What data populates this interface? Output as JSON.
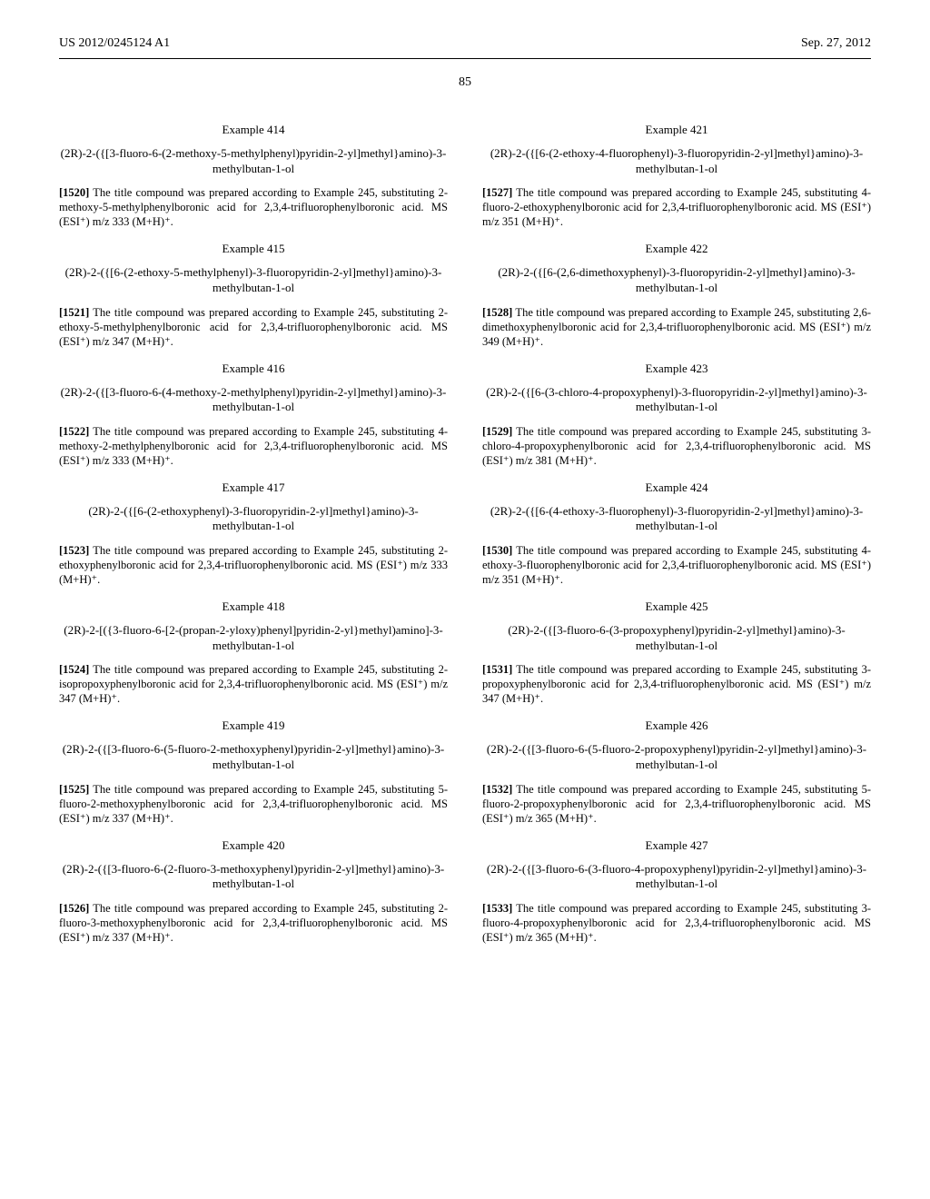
{
  "header": {
    "left": "US 2012/0245124 A1",
    "right": "Sep. 27, 2012"
  },
  "page_number": "85",
  "left_col": [
    {
      "example": "Example 414",
      "title": "(2R)-2-({[3-fluoro-6-(2-methoxy-5-methylphenyl)pyridin-2-yl]methyl}amino)-3-methylbutan-1-ol",
      "pn": "[1520]",
      "body": "   The title compound was prepared according to Example 245, substituting 2-methoxy-5-methylphenylboronic acid for 2,3,4-trifluorophenylboronic acid. MS (ESI⁺) m/z 333 (M+H)⁺."
    },
    {
      "example": "Example 415",
      "title": "(2R)-2-({[6-(2-ethoxy-5-methylphenyl)-3-fluoropyridin-2-yl]methyl}amino)-3-methylbutan-1-ol",
      "pn": "[1521]",
      "body": "   The title compound was prepared according to Example 245, substituting 2-ethoxy-5-methylphenylboronic acid for 2,3,4-trifluorophenylboronic acid. MS (ESI⁺) m/z 347 (M+H)⁺."
    },
    {
      "example": "Example 416",
      "title": "(2R)-2-({[3-fluoro-6-(4-methoxy-2-methylphenyl)pyridin-2-yl]methyl}amino)-3-methylbutan-1-ol",
      "pn": "[1522]",
      "body": "   The title compound was prepared according to Example 245, substituting 4-methoxy-2-methylphenylboronic acid for 2,3,4-trifluorophenylboronic acid. MS (ESI⁺) m/z 333 (M+H)⁺."
    },
    {
      "example": "Example 417",
      "title": "(2R)-2-({[6-(2-ethoxyphenyl)-3-fluoropyridin-2-yl]methyl}amino)-3-methylbutan-1-ol",
      "pn": "[1523]",
      "body": "   The title compound was prepared according to Example 245, substituting 2-ethoxyphenylboronic acid for 2,3,4-trifluorophenylboronic acid. MS (ESI⁺) m/z 333 (M+H)⁺."
    },
    {
      "example": "Example 418",
      "title": "(2R)-2-[({3-fluoro-6-[2-(propan-2-yloxy)phenyl]pyridin-2-yl}methyl)amino]-3-methylbutan-1-ol",
      "pn": "[1524]",
      "body": "   The title compound was prepared according to Example 245, substituting 2-isopropoxyphenylboronic acid for 2,3,4-trifluorophenylboronic acid. MS (ESI⁺) m/z 347 (M+H)⁺."
    },
    {
      "example": "Example 419",
      "title": "(2R)-2-({[3-fluoro-6-(5-fluoro-2-methoxyphenyl)pyridin-2-yl]methyl}amino)-3-methylbutan-1-ol",
      "pn": "[1525]",
      "body": "   The title compound was prepared according to Example 245, substituting 5-fluoro-2-methoxyphenylboronic acid for 2,3,4-trifluorophenylboronic acid. MS (ESI⁺) m/z 337 (M+H)⁺."
    },
    {
      "example": "Example 420",
      "title": "(2R)-2-({[3-fluoro-6-(2-fluoro-3-methoxyphenyl)pyridin-2-yl]methyl}amino)-3-methylbutan-1-ol",
      "pn": "[1526]",
      "body": "   The title compound was prepared according to Example 245, substituting 2-fluoro-3-methoxyphenylboronic acid for 2,3,4-trifluorophenylboronic acid. MS (ESI⁺) m/z 337 (M+H)⁺."
    }
  ],
  "right_col": [
    {
      "example": "Example 421",
      "title": "(2R)-2-({[6-(2-ethoxy-4-fluorophenyl)-3-fluoropyridin-2-yl]methyl}amino)-3-methylbutan-1-ol",
      "pn": "[1527]",
      "body": "   The title compound was prepared according to Example 245, substituting 4-fluoro-2-ethoxyphenylboronic acid for 2,3,4-trifluorophenylboronic acid. MS (ESI⁺) m/z 351 (M+H)⁺."
    },
    {
      "example": "Example 422",
      "title": "(2R)-2-({[6-(2,6-dimethoxyphenyl)-3-fluoropyridin-2-yl]methyl}amino)-3-methylbutan-1-ol",
      "pn": "[1528]",
      "body": "   The title compound was prepared according to Example 245, substituting 2,6-dimethoxyphenylboronic acid for 2,3,4-trifluorophenylboronic acid. MS (ESI⁺) m/z 349 (M+H)⁺."
    },
    {
      "example": "Example 423",
      "title": "(2R)-2-({[6-(3-chloro-4-propoxyphenyl)-3-fluoropyridin-2-yl]methyl}amino)-3-methylbutan-1-ol",
      "pn": "[1529]",
      "body": "   The title compound was prepared according to Example 245, substituting 3-chloro-4-propoxyphenylboronic acid for 2,3,4-trifluorophenylboronic acid. MS (ESI⁺) m/z 381 (M+H)⁺."
    },
    {
      "example": "Example 424",
      "title": "(2R)-2-({[6-(4-ethoxy-3-fluorophenyl)-3-fluoropyridin-2-yl]methyl}amino)-3-methylbutan-1-ol",
      "pn": "[1530]",
      "body": "   The title compound was prepared according to Example 245, substituting 4-ethoxy-3-fluorophenylboronic acid for 2,3,4-trifluorophenylboronic acid. MS (ESI⁺) m/z 351 (M+H)⁺."
    },
    {
      "example": "Example 425",
      "title": "(2R)-2-({[3-fluoro-6-(3-propoxyphenyl)pyridin-2-yl]methyl}amino)-3-methylbutan-1-ol",
      "pn": "[1531]",
      "body": "   The title compound was prepared according to Example 245, substituting 3-propoxyphenylboronic acid for 2,3,4-trifluorophenylboronic acid. MS (ESI⁺) m/z 347 (M+H)⁺."
    },
    {
      "example": "Example 426",
      "title": "(2R)-2-({[3-fluoro-6-(5-fluoro-2-propoxyphenyl)pyridin-2-yl]methyl}amino)-3-methylbutan-1-ol",
      "pn": "[1532]",
      "body": "   The title compound was prepared according to Example 245, substituting 5-fluoro-2-propoxyphenylboronic acid for 2,3,4-trifluorophenylboronic acid. MS (ESI⁺) m/z 365 (M+H)⁺."
    },
    {
      "example": "Example 427",
      "title": "(2R)-2-({[3-fluoro-6-(3-fluoro-4-propoxyphenyl)pyridin-2-yl]methyl}amino)-3-methylbutan-1-ol",
      "pn": "[1533]",
      "body": "   The title compound was prepared according to Example 245, substituting 3-fluoro-4-propoxyphenylboronic acid for 2,3,4-trifluorophenylboronic acid. MS (ESI⁺) m/z 365 (M+H)⁺."
    }
  ]
}
